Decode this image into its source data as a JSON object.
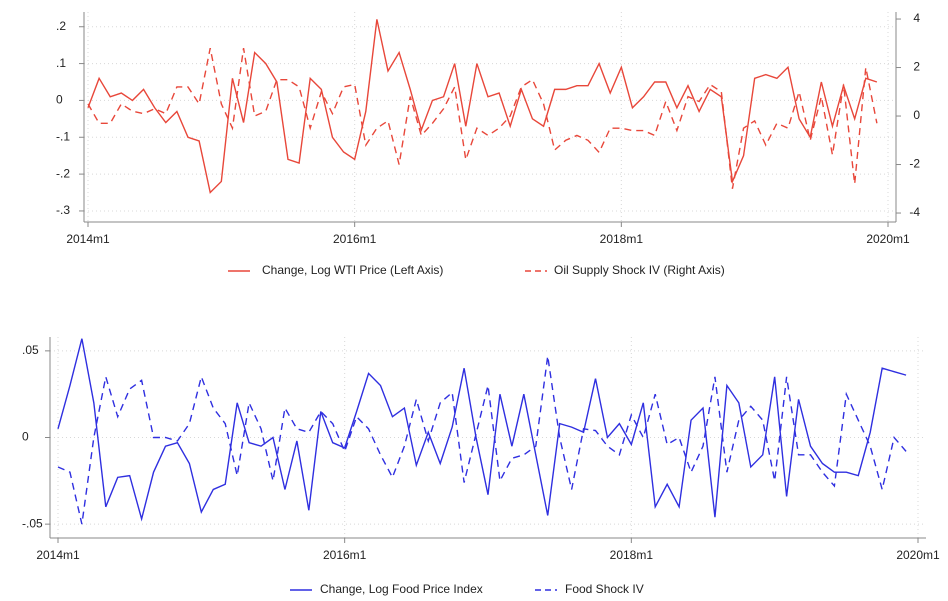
{
  "chart_data": [
    {
      "type": "line",
      "x": [
        "2014m1",
        "2014m2",
        "2014m3",
        "2014m4",
        "2014m5",
        "2014m6",
        "2014m7",
        "2014m8",
        "2014m9",
        "2014m10",
        "2014m11",
        "2014m12",
        "2015m1",
        "2015m2",
        "2015m3",
        "2015m4",
        "2015m5",
        "2015m6",
        "2015m7",
        "2015m8",
        "2015m9",
        "2015m10",
        "2015m11",
        "2015m12",
        "2016m1",
        "2016m2",
        "2016m3",
        "2016m4",
        "2016m5",
        "2016m6",
        "2016m7",
        "2016m8",
        "2016m9",
        "2016m10",
        "2016m11",
        "2016m12",
        "2017m1",
        "2017m2",
        "2017m3",
        "2017m4",
        "2017m5",
        "2017m6",
        "2017m7",
        "2017m8",
        "2017m9",
        "2017m10",
        "2017m11",
        "2017m12",
        "2018m1",
        "2018m2",
        "2018m3",
        "2018m4",
        "2018m5",
        "2018m6",
        "2018m7",
        "2018m8",
        "2018m9",
        "2018m10",
        "2018m11",
        "2018m12",
        "2019m1",
        "2019m2",
        "2019m3",
        "2019m4",
        "2019m5",
        "2019m6",
        "2019m7",
        "2019m8",
        "2019m9",
        "2019m10",
        "2019m11",
        "2019m12"
      ],
      "xlim": [
        "2014m1",
        "2020m1"
      ],
      "xticks": [
        "2014m1",
        "2016m1",
        "2018m1",
        "2020m1"
      ],
      "ylim": [
        -0.33,
        0.24
      ],
      "yticks": [
        {
          "value": 0.2,
          "label": ".2"
        },
        {
          "value": 0.1,
          "label": ".1"
        },
        0,
        {
          "value": -0.1,
          "label": "-.1"
        },
        {
          "value": -0.2,
          "label": "-.2"
        },
        {
          "value": -0.3,
          "label": "-.3"
        }
      ],
      "y2lim": [
        -4.37,
        4.29
      ],
      "y2ticks": [
        4,
        2,
        0,
        -2,
        -4
      ],
      "grid": true,
      "series": [
        {
          "name": "Change, Log WTI Price (Left Axis)",
          "color": "#e8473a",
          "style": "solid",
          "values": [
            -0.02,
            0.06,
            0.01,
            0.02,
            0.0,
            0.03,
            -0.02,
            -0.06,
            -0.03,
            -0.1,
            -0.11,
            -0.25,
            -0.22,
            0.06,
            -0.06,
            0.13,
            0.1,
            0.05,
            -0.16,
            -0.17,
            0.06,
            0.03,
            -0.1,
            -0.14,
            -0.16,
            -0.03,
            0.22,
            0.08,
            0.13,
            0.03,
            -0.08,
            0.0,
            0.01,
            0.1,
            -0.07,
            0.1,
            0.01,
            0.02,
            -0.07,
            0.03,
            -0.05,
            -0.07,
            0.03,
            0.03,
            0.04,
            0.04,
            0.1,
            0.02,
            0.09,
            -0.02,
            0.01,
            0.05,
            0.05,
            -0.02,
            0.04,
            -0.03,
            0.03,
            0.01,
            -0.22,
            -0.15,
            0.06,
            0.07,
            0.06,
            0.09,
            -0.05,
            -0.1,
            0.05,
            -0.07,
            0.04,
            -0.05,
            0.06,
            0.05
          ]
        },
        {
          "name": "Oil Supply Shock IV (Right Axis)",
          "color": "#e8473a",
          "style": "dashed",
          "axis": "y2",
          "values": [
            0.5,
            -0.3,
            -0.3,
            0.5,
            0.2,
            0.1,
            0.3,
            0.1,
            1.2,
            1.2,
            0.5,
            2.8,
            0.5,
            -0.5,
            2.8,
            0.0,
            0.2,
            1.5,
            1.5,
            1.2,
            -0.5,
            1.0,
            0.1,
            1.2,
            1.3,
            -1.2,
            -0.5,
            -0.2,
            -2.0,
            0.8,
            -0.8,
            -0.3,
            0.3,
            1.2,
            -1.8,
            -0.5,
            -0.8,
            -0.5,
            0.0,
            1.2,
            1.5,
            0.5,
            -1.4,
            -1.0,
            -0.8,
            -1.0,
            -1.5,
            -0.5,
            -0.5,
            -0.6,
            -0.6,
            -0.8,
            0.6,
            -0.6,
            0.8,
            0.6,
            1.3,
            1.0,
            -3.0,
            -0.5,
            -0.2,
            -1.2,
            -0.3,
            -0.5,
            1.0,
            -1.0,
            0.8,
            -1.6,
            1.3,
            -2.8,
            2.0,
            -0.3
          ]
        }
      ]
    },
    {
      "type": "line",
      "x": [
        "2014m1",
        "2014m2",
        "2014m3",
        "2014m4",
        "2014m5",
        "2014m6",
        "2014m7",
        "2014m8",
        "2014m9",
        "2014m10",
        "2014m11",
        "2014m12",
        "2015m1",
        "2015m2",
        "2015m3",
        "2015m4",
        "2015m5",
        "2015m6",
        "2015m7",
        "2015m8",
        "2015m9",
        "2015m10",
        "2015m11",
        "2015m12",
        "2016m1",
        "2016m2",
        "2016m3",
        "2016m4",
        "2016m5",
        "2016m6",
        "2016m7",
        "2016m8",
        "2016m9",
        "2016m10",
        "2016m11",
        "2016m12",
        "2017m1",
        "2017m2",
        "2017m3",
        "2017m4",
        "2017m5",
        "2017m6",
        "2017m7",
        "2017m8",
        "2017m9",
        "2017m10",
        "2017m11",
        "2017m12",
        "2018m1",
        "2018m2",
        "2018m3",
        "2018m4",
        "2018m5",
        "2018m6",
        "2018m7",
        "2018m8",
        "2018m9",
        "2018m10",
        "2018m11",
        "2018m12",
        "2019m1",
        "2019m2",
        "2019m3",
        "2019m4",
        "2019m5",
        "2019m6",
        "2019m7",
        "2019m8",
        "2019m9",
        "2019m10",
        "2019m11",
        "2019m12"
      ],
      "xlim": [
        "2014m1",
        "2020m1"
      ],
      "xticks": [
        "2014m1",
        "2016m1",
        "2018m1",
        "2020m1"
      ],
      "ylim": [
        -0.058,
        0.058
      ],
      "yticks": [
        {
          "value": 0.05,
          "label": ".05"
        },
        0,
        {
          "value": -0.05,
          "label": "-.05"
        }
      ],
      "grid": true,
      "series": [
        {
          "name": "Change, Log Food Price Index",
          "color": "#2f2fe0",
          "style": "solid",
          "values": [
            0.005,
            0.03,
            0.057,
            0.02,
            -0.04,
            -0.023,
            -0.022,
            -0.047,
            -0.02,
            -0.005,
            -0.003,
            -0.015,
            -0.043,
            -0.03,
            -0.027,
            0.02,
            -0.003,
            -0.005,
            0.0,
            -0.03,
            -0.002,
            -0.042,
            0.015,
            -0.003,
            -0.006,
            0.015,
            0.037,
            0.03,
            0.012,
            0.017,
            -0.016,
            0.003,
            -0.015,
            0.006,
            0.04,
            0.0,
            -0.033,
            0.025,
            -0.005,
            0.025,
            -0.01,
            -0.045,
            0.008,
            0.006,
            0.003,
            0.034,
            0.0,
            0.008,
            -0.004,
            0.02,
            -0.04,
            -0.027,
            -0.04,
            0.01,
            0.017,
            -0.046,
            0.03,
            0.02,
            -0.017,
            -0.01,
            0.035,
            -0.034,
            0.022,
            -0.005,
            -0.015,
            -0.02,
            -0.02,
            -0.022,
            0.003,
            0.04,
            0.038,
            0.036
          ]
        },
        {
          "name": "Food Shock IV",
          "color": "#2f2fe0",
          "style": "dashed",
          "values": [
            -0.017,
            -0.02,
            -0.05,
            0.0,
            0.035,
            0.012,
            0.028,
            0.033,
            0.0,
            0.0,
            -0.002,
            0.008,
            0.035,
            0.017,
            0.008,
            -0.022,
            0.02,
            0.005,
            -0.025,
            0.017,
            0.005,
            0.003,
            0.015,
            0.008,
            -0.008,
            0.012,
            0.005,
            -0.01,
            -0.023,
            -0.005,
            0.022,
            -0.002,
            0.02,
            0.026,
            -0.026,
            0.002,
            0.03,
            -0.025,
            -0.012,
            -0.01,
            -0.005,
            0.047,
            0.0,
            -0.03,
            0.005,
            0.004,
            -0.005,
            -0.01,
            0.013,
            0.0,
            0.025,
            -0.004,
            0.0,
            -0.02,
            -0.005,
            0.035,
            -0.02,
            0.01,
            0.018,
            0.01,
            -0.025,
            0.035,
            -0.01,
            -0.01,
            -0.02,
            -0.028,
            0.025,
            0.01,
            -0.005,
            -0.03,
            0.0,
            -0.008
          ]
        }
      ]
    }
  ]
}
